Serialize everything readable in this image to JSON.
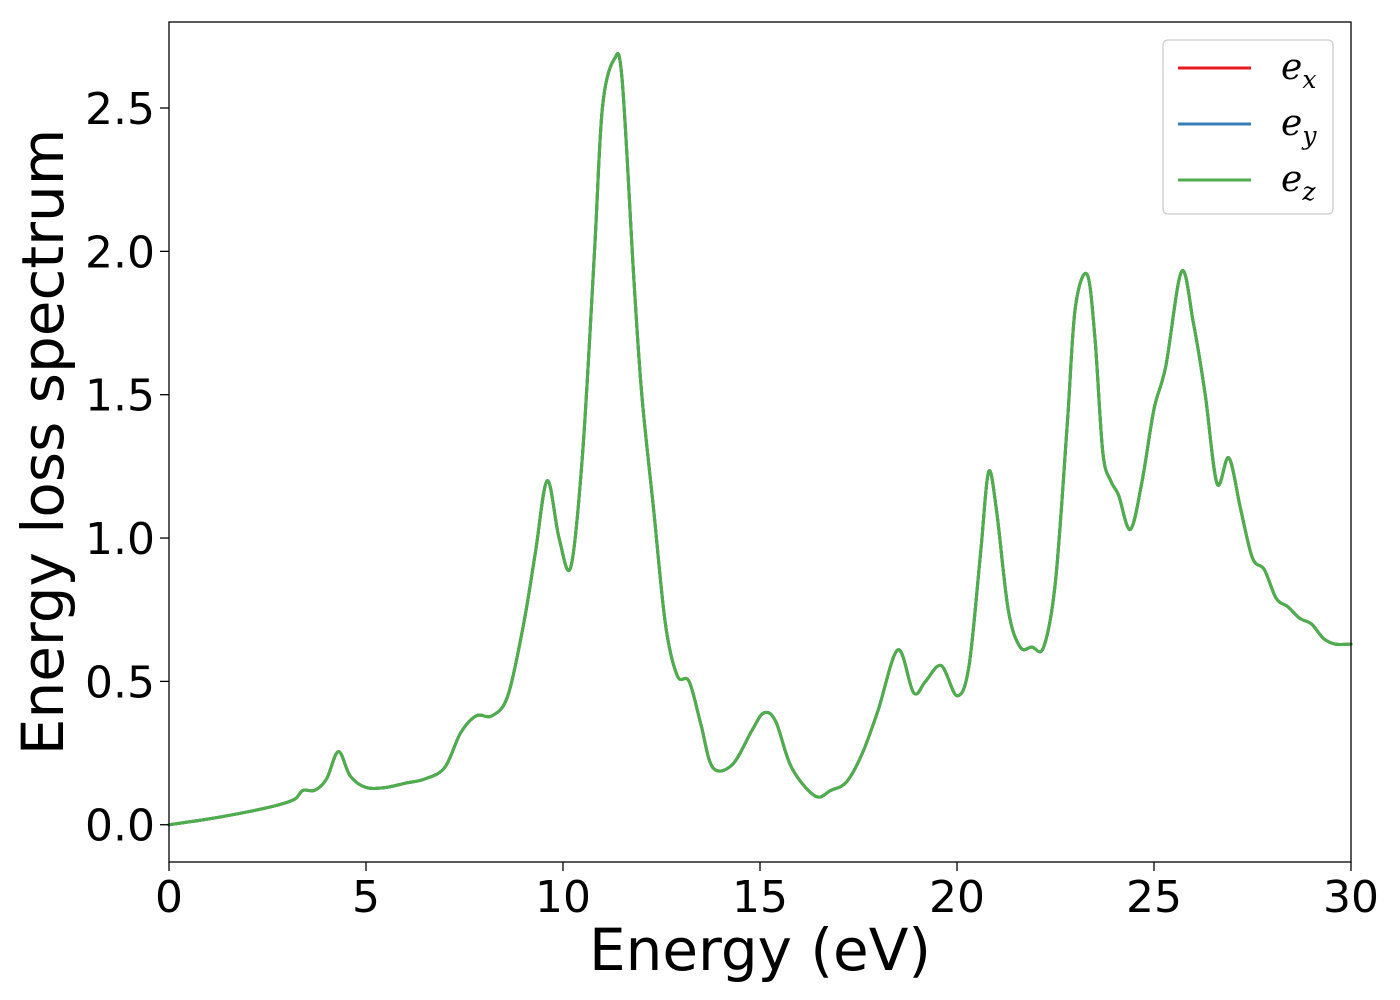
{
  "chart_data": {
    "type": "line",
    "xlabel": "Energy (eV)",
    "ylabel": "Energy loss spectrum",
    "xlim": [
      0,
      30
    ],
    "ylim": [
      -0.13,
      2.8
    ],
    "xticks": [
      0,
      5,
      10,
      15,
      20,
      25,
      30
    ],
    "xtick_labels": [
      "0",
      "5",
      "10",
      "15",
      "20",
      "25",
      "30"
    ],
    "yticks": [
      0.0,
      0.5,
      1.0,
      1.5,
      2.0,
      2.5
    ],
    "ytick_labels": [
      "0.0",
      "0.5",
      "1.0",
      "1.5",
      "2.0",
      "2.5"
    ],
    "grid": false,
    "legend_position": "top-right",
    "series": [
      {
        "name": "e_x",
        "legend_base": "e",
        "legend_sub": "x",
        "color": "#e41a1c",
        "x": [
          0,
          1,
          2,
          2.8,
          3.2,
          3.4,
          3.7,
          4.0,
          4.3,
          4.6,
          5.0,
          5.5,
          6.0,
          6.5,
          7.0,
          7.4,
          7.8,
          8.2,
          8.6,
          9.0,
          9.3,
          9.6,
          9.9,
          10.2,
          10.5,
          10.8,
          11.0,
          11.3,
          11.5,
          11.8,
          12.0,
          12.3,
          12.6,
          12.9,
          13.2,
          13.5,
          13.8,
          14.3,
          14.8,
          15.1,
          15.4,
          15.8,
          16.4,
          16.8,
          17.2,
          17.6,
          18.0,
          18.5,
          18.9,
          19.2,
          19.6,
          20.0,
          20.3,
          20.6,
          20.8,
          21.0,
          21.3,
          21.6,
          21.9,
          22.2,
          22.5,
          22.8,
          23.0,
          23.3,
          23.5,
          23.7,
          23.9,
          24.1,
          24.4,
          24.7,
          25.0,
          25.3,
          25.7,
          26.0,
          26.3,
          26.6,
          26.9,
          27.2,
          27.5,
          27.8,
          28.1,
          28.4,
          28.7,
          29.0,
          29.3,
          29.6,
          30.0
        ],
        "values": [
          0.0,
          0.02,
          0.045,
          0.07,
          0.09,
          0.12,
          0.12,
          0.16,
          0.255,
          0.17,
          0.13,
          0.13,
          0.145,
          0.16,
          0.2,
          0.32,
          0.38,
          0.38,
          0.45,
          0.7,
          0.95,
          1.2,
          1.0,
          0.9,
          1.3,
          2.0,
          2.5,
          2.67,
          2.6,
          1.9,
          1.5,
          1.1,
          0.7,
          0.52,
          0.5,
          0.35,
          0.2,
          0.21,
          0.33,
          0.39,
          0.36,
          0.2,
          0.1,
          0.12,
          0.15,
          0.25,
          0.4,
          0.61,
          0.46,
          0.5,
          0.555,
          0.45,
          0.55,
          0.95,
          1.23,
          1.1,
          0.75,
          0.62,
          0.62,
          0.62,
          0.85,
          1.4,
          1.8,
          1.92,
          1.7,
          1.3,
          1.2,
          1.15,
          1.03,
          1.2,
          1.45,
          1.6,
          1.93,
          1.75,
          1.5,
          1.19,
          1.28,
          1.1,
          0.93,
          0.89,
          0.79,
          0.76,
          0.72,
          0.7,
          0.65,
          0.63,
          0.63
        ]
      },
      {
        "name": "e_y",
        "legend_base": "e",
        "legend_sub": "y",
        "color": "#377eb8",
        "x": [
          0,
          1,
          2,
          2.8,
          3.2,
          3.4,
          3.7,
          4.0,
          4.3,
          4.6,
          5.0,
          5.5,
          6.0,
          6.5,
          7.0,
          7.4,
          7.8,
          8.2,
          8.6,
          9.0,
          9.3,
          9.6,
          9.9,
          10.2,
          10.5,
          10.8,
          11.0,
          11.3,
          11.5,
          11.8,
          12.0,
          12.3,
          12.6,
          12.9,
          13.2,
          13.5,
          13.8,
          14.3,
          14.8,
          15.1,
          15.4,
          15.8,
          16.4,
          16.8,
          17.2,
          17.6,
          18.0,
          18.5,
          18.9,
          19.2,
          19.6,
          20.0,
          20.3,
          20.6,
          20.8,
          21.0,
          21.3,
          21.6,
          21.9,
          22.2,
          22.5,
          22.8,
          23.0,
          23.3,
          23.5,
          23.7,
          23.9,
          24.1,
          24.4,
          24.7,
          25.0,
          25.3,
          25.7,
          26.0,
          26.3,
          26.6,
          26.9,
          27.2,
          27.5,
          27.8,
          28.1,
          28.4,
          28.7,
          29.0,
          29.3,
          29.6,
          30.0
        ],
        "values": [
          0.0,
          0.02,
          0.045,
          0.07,
          0.09,
          0.12,
          0.12,
          0.16,
          0.255,
          0.17,
          0.13,
          0.13,
          0.145,
          0.16,
          0.2,
          0.32,
          0.38,
          0.38,
          0.45,
          0.7,
          0.95,
          1.2,
          1.0,
          0.9,
          1.3,
          2.0,
          2.5,
          2.67,
          2.6,
          1.9,
          1.5,
          1.1,
          0.7,
          0.52,
          0.5,
          0.35,
          0.2,
          0.21,
          0.33,
          0.39,
          0.36,
          0.2,
          0.1,
          0.12,
          0.15,
          0.25,
          0.4,
          0.61,
          0.46,
          0.5,
          0.555,
          0.45,
          0.55,
          0.95,
          1.23,
          1.1,
          0.75,
          0.62,
          0.62,
          0.62,
          0.85,
          1.4,
          1.8,
          1.92,
          1.7,
          1.3,
          1.2,
          1.15,
          1.03,
          1.2,
          1.45,
          1.6,
          1.93,
          1.75,
          1.5,
          1.19,
          1.28,
          1.1,
          0.93,
          0.89,
          0.79,
          0.76,
          0.72,
          0.7,
          0.65,
          0.63,
          0.63
        ]
      },
      {
        "name": "e_z",
        "legend_base": "e",
        "legend_sub": "z",
        "color": "#4daf4a",
        "x": [
          0,
          1,
          2,
          2.8,
          3.2,
          3.4,
          3.7,
          4.0,
          4.3,
          4.6,
          5.0,
          5.5,
          6.0,
          6.5,
          7.0,
          7.4,
          7.8,
          8.2,
          8.6,
          9.0,
          9.3,
          9.6,
          9.9,
          10.2,
          10.5,
          10.8,
          11.0,
          11.3,
          11.5,
          11.8,
          12.0,
          12.3,
          12.6,
          12.9,
          13.2,
          13.5,
          13.8,
          14.3,
          14.8,
          15.1,
          15.4,
          15.8,
          16.4,
          16.8,
          17.2,
          17.6,
          18.0,
          18.5,
          18.9,
          19.2,
          19.6,
          20.0,
          20.3,
          20.6,
          20.8,
          21.0,
          21.3,
          21.6,
          21.9,
          22.2,
          22.5,
          22.8,
          23.0,
          23.3,
          23.5,
          23.7,
          23.9,
          24.1,
          24.4,
          24.7,
          25.0,
          25.3,
          25.7,
          26.0,
          26.3,
          26.6,
          26.9,
          27.2,
          27.5,
          27.8,
          28.1,
          28.4,
          28.7,
          29.0,
          29.3,
          29.6,
          30.0
        ],
        "values": [
          0.0,
          0.02,
          0.045,
          0.07,
          0.09,
          0.12,
          0.12,
          0.16,
          0.255,
          0.17,
          0.13,
          0.13,
          0.145,
          0.16,
          0.2,
          0.32,
          0.38,
          0.38,
          0.45,
          0.7,
          0.95,
          1.2,
          1.0,
          0.9,
          1.3,
          2.0,
          2.5,
          2.67,
          2.6,
          1.9,
          1.5,
          1.1,
          0.7,
          0.52,
          0.5,
          0.35,
          0.2,
          0.21,
          0.33,
          0.39,
          0.36,
          0.2,
          0.1,
          0.12,
          0.15,
          0.25,
          0.4,
          0.61,
          0.46,
          0.5,
          0.555,
          0.45,
          0.55,
          0.95,
          1.23,
          1.1,
          0.75,
          0.62,
          0.62,
          0.62,
          0.85,
          1.4,
          1.8,
          1.92,
          1.7,
          1.3,
          1.2,
          1.15,
          1.03,
          1.2,
          1.45,
          1.6,
          1.93,
          1.75,
          1.5,
          1.19,
          1.28,
          1.1,
          0.93,
          0.89,
          0.79,
          0.76,
          0.72,
          0.7,
          0.65,
          0.63,
          0.63
        ]
      }
    ]
  }
}
